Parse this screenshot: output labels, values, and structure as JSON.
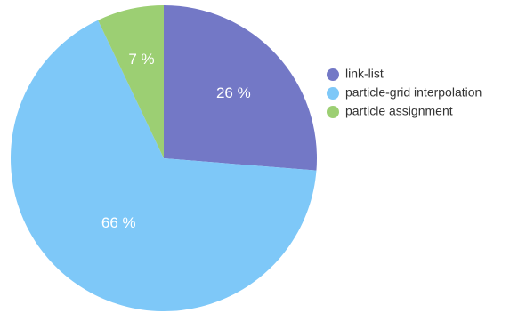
{
  "chart_data": {
    "type": "pie",
    "categories": [
      "link-list",
      "particle-grid interpolation",
      "particle assignment"
    ],
    "values": [
      26,
      66,
      7
    ],
    "data_labels": [
      "26 %",
      "66 %",
      "7 %"
    ],
    "colors": [
      "#7378c6",
      "#7ec8f8",
      "#9ccf73"
    ],
    "legend_placement": "right",
    "start_angle": "top",
    "direction": "clockwise"
  }
}
